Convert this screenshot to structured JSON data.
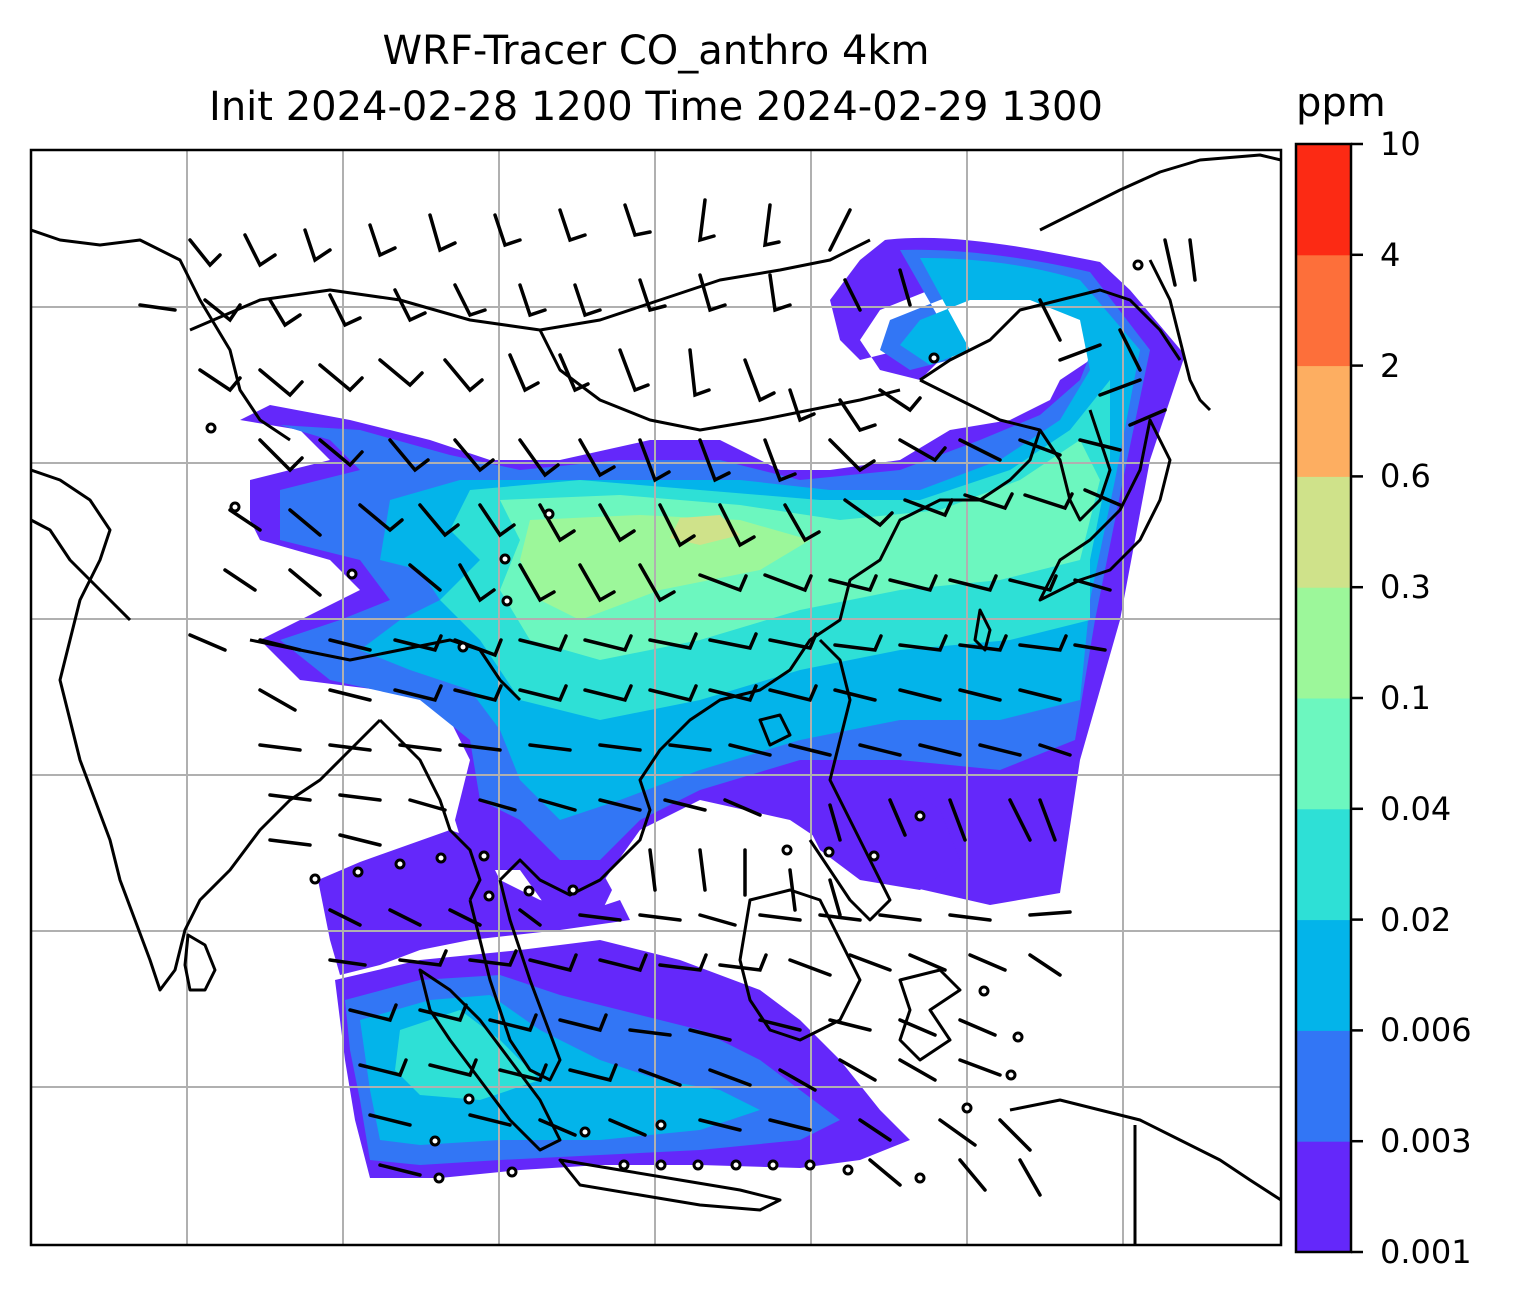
{
  "title": {
    "line1": "WRF-Tracer CO_anthro 4km",
    "line2": "Init 2024-02-28 1200 Time 2024-02-29 1300"
  },
  "colorbar": {
    "unit": "ppm",
    "ticks": [
      "10",
      "4",
      "2",
      "0.6",
      "0.3",
      "0.1",
      "0.04",
      "0.02",
      "0.006",
      "0.003",
      "0.001"
    ],
    "colors": [
      "#6428fa",
      "#3276f5",
      "#03b4ea",
      "#2ee0d6",
      "#6cf7bf",
      "#9cf79a",
      "#cfe28a",
      "#fdae61",
      "#fd6f3a",
      "#fc2a14"
    ]
  },
  "map": {
    "gridlines": true,
    "colors": {
      "grid": "#b0b0b0",
      "coast": "#000000",
      "barb": "#000000"
    }
  }
}
